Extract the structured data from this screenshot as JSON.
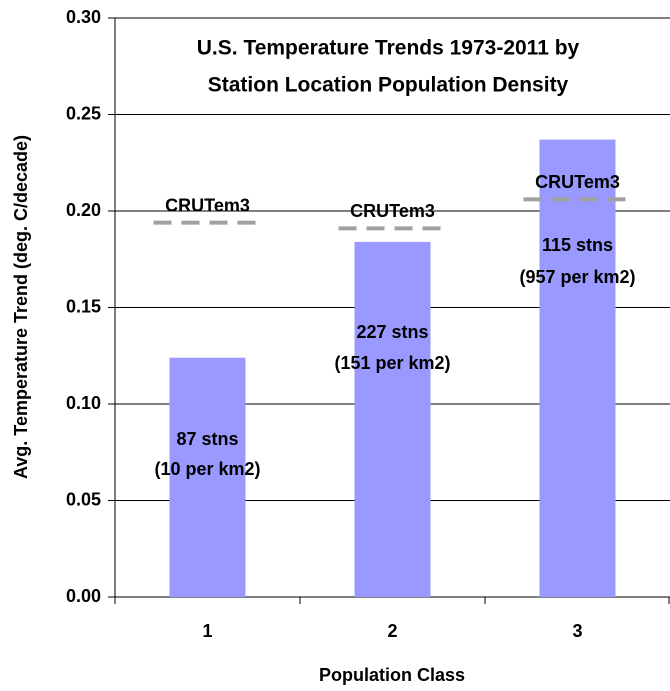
{
  "chart_data": {
    "type": "bar",
    "title": [
      "U.S. Temperature Trends 1973-2011 by",
      "Station Location Population Density"
    ],
    "x_label": "Population Class",
    "y_label": "Avg. Temperature Trend (deg. C/decade)",
    "categories": [
      "1",
      "2",
      "3"
    ],
    "values": [
      0.124,
      0.184,
      0.237
    ],
    "color": "#9999ff",
    "bar_labels": [
      [
        "87 stns",
        "(10 per km2)"
      ],
      [
        "227 stns",
        "(151 per km2)"
      ],
      [
        "115 stns",
        "(957 per km2)"
      ]
    ],
    "reference": {
      "name": "CRUTem3",
      "color": "#a0a0a0",
      "values": [
        0.194,
        0.191,
        0.206
      ]
    },
    "ylim": [
      0,
      0.3
    ],
    "yticks": [
      {
        "value": 0,
        "label": "0.00"
      },
      {
        "value": 0.05,
        "label": "0.05"
      },
      {
        "value": 0.1,
        "label": "0.10"
      },
      {
        "value": 0.15,
        "label": "0.15"
      },
      {
        "value": 0.2,
        "label": "0.20"
      },
      {
        "value": 0.25,
        "label": "0.25"
      },
      {
        "value": 0.3,
        "label": "0.30"
      }
    ],
    "grid": true
  }
}
